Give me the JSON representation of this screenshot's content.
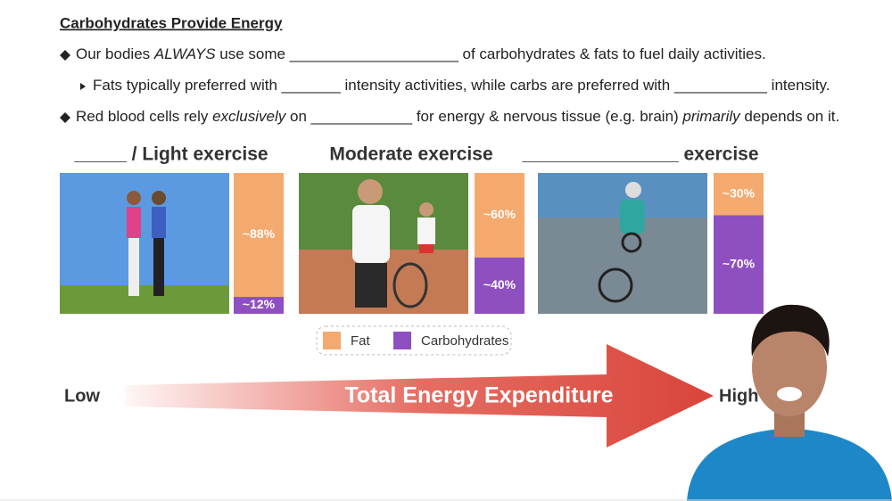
{
  "title": "Carbohydrates Provide Energy",
  "bullets": [
    {
      "level": 1,
      "segments": [
        {
          "text": "Our bodies ",
          "italic": false
        },
        {
          "text": "ALWAYS",
          "italic": true
        },
        {
          "text": " use some ____________________ of carbohydrates & fats to fuel daily activities.",
          "italic": false
        }
      ]
    },
    {
      "level": 2,
      "segments": [
        {
          "text": "Fats typically preferred with _______ intensity activities, while carbs are preferred with ___________ intensity.",
          "italic": false
        }
      ]
    },
    {
      "level": 1,
      "segments": [
        {
          "text": "Red blood cells rely ",
          "italic": false
        },
        {
          "text": "exclusively",
          "italic": true
        },
        {
          "text": " on ____________ for energy & nervous tissue (e.g. brain) ",
          "italic": false
        },
        {
          "text": "primarily",
          "italic": true
        },
        {
          "text": " depends on it.",
          "italic": false
        }
      ]
    }
  ],
  "legend": {
    "fat": {
      "name": "Fat",
      "color": "#f4a96e"
    },
    "carbs": {
      "name": "Carbohydrates",
      "color": "#8e4fc0"
    }
  },
  "panels": [
    {
      "heading": "_____ / Light exercise",
      "fat": 88,
      "fat_label": "~88%",
      "carbs": 12,
      "carbs_label": "~12%"
    },
    {
      "heading": "Moderate exercise",
      "fat": 60,
      "fat_label": "~60%",
      "carbs": 40,
      "carbs_label": "~40%"
    },
    {
      "heading": "_______________ exercise",
      "fat": 30,
      "fat_label": "~30%",
      "carbs": 70,
      "carbs_label": "~70%"
    }
  ],
  "arrow": {
    "low": "Low",
    "label": "Total Energy Expenditure",
    "high": "High"
  }
}
